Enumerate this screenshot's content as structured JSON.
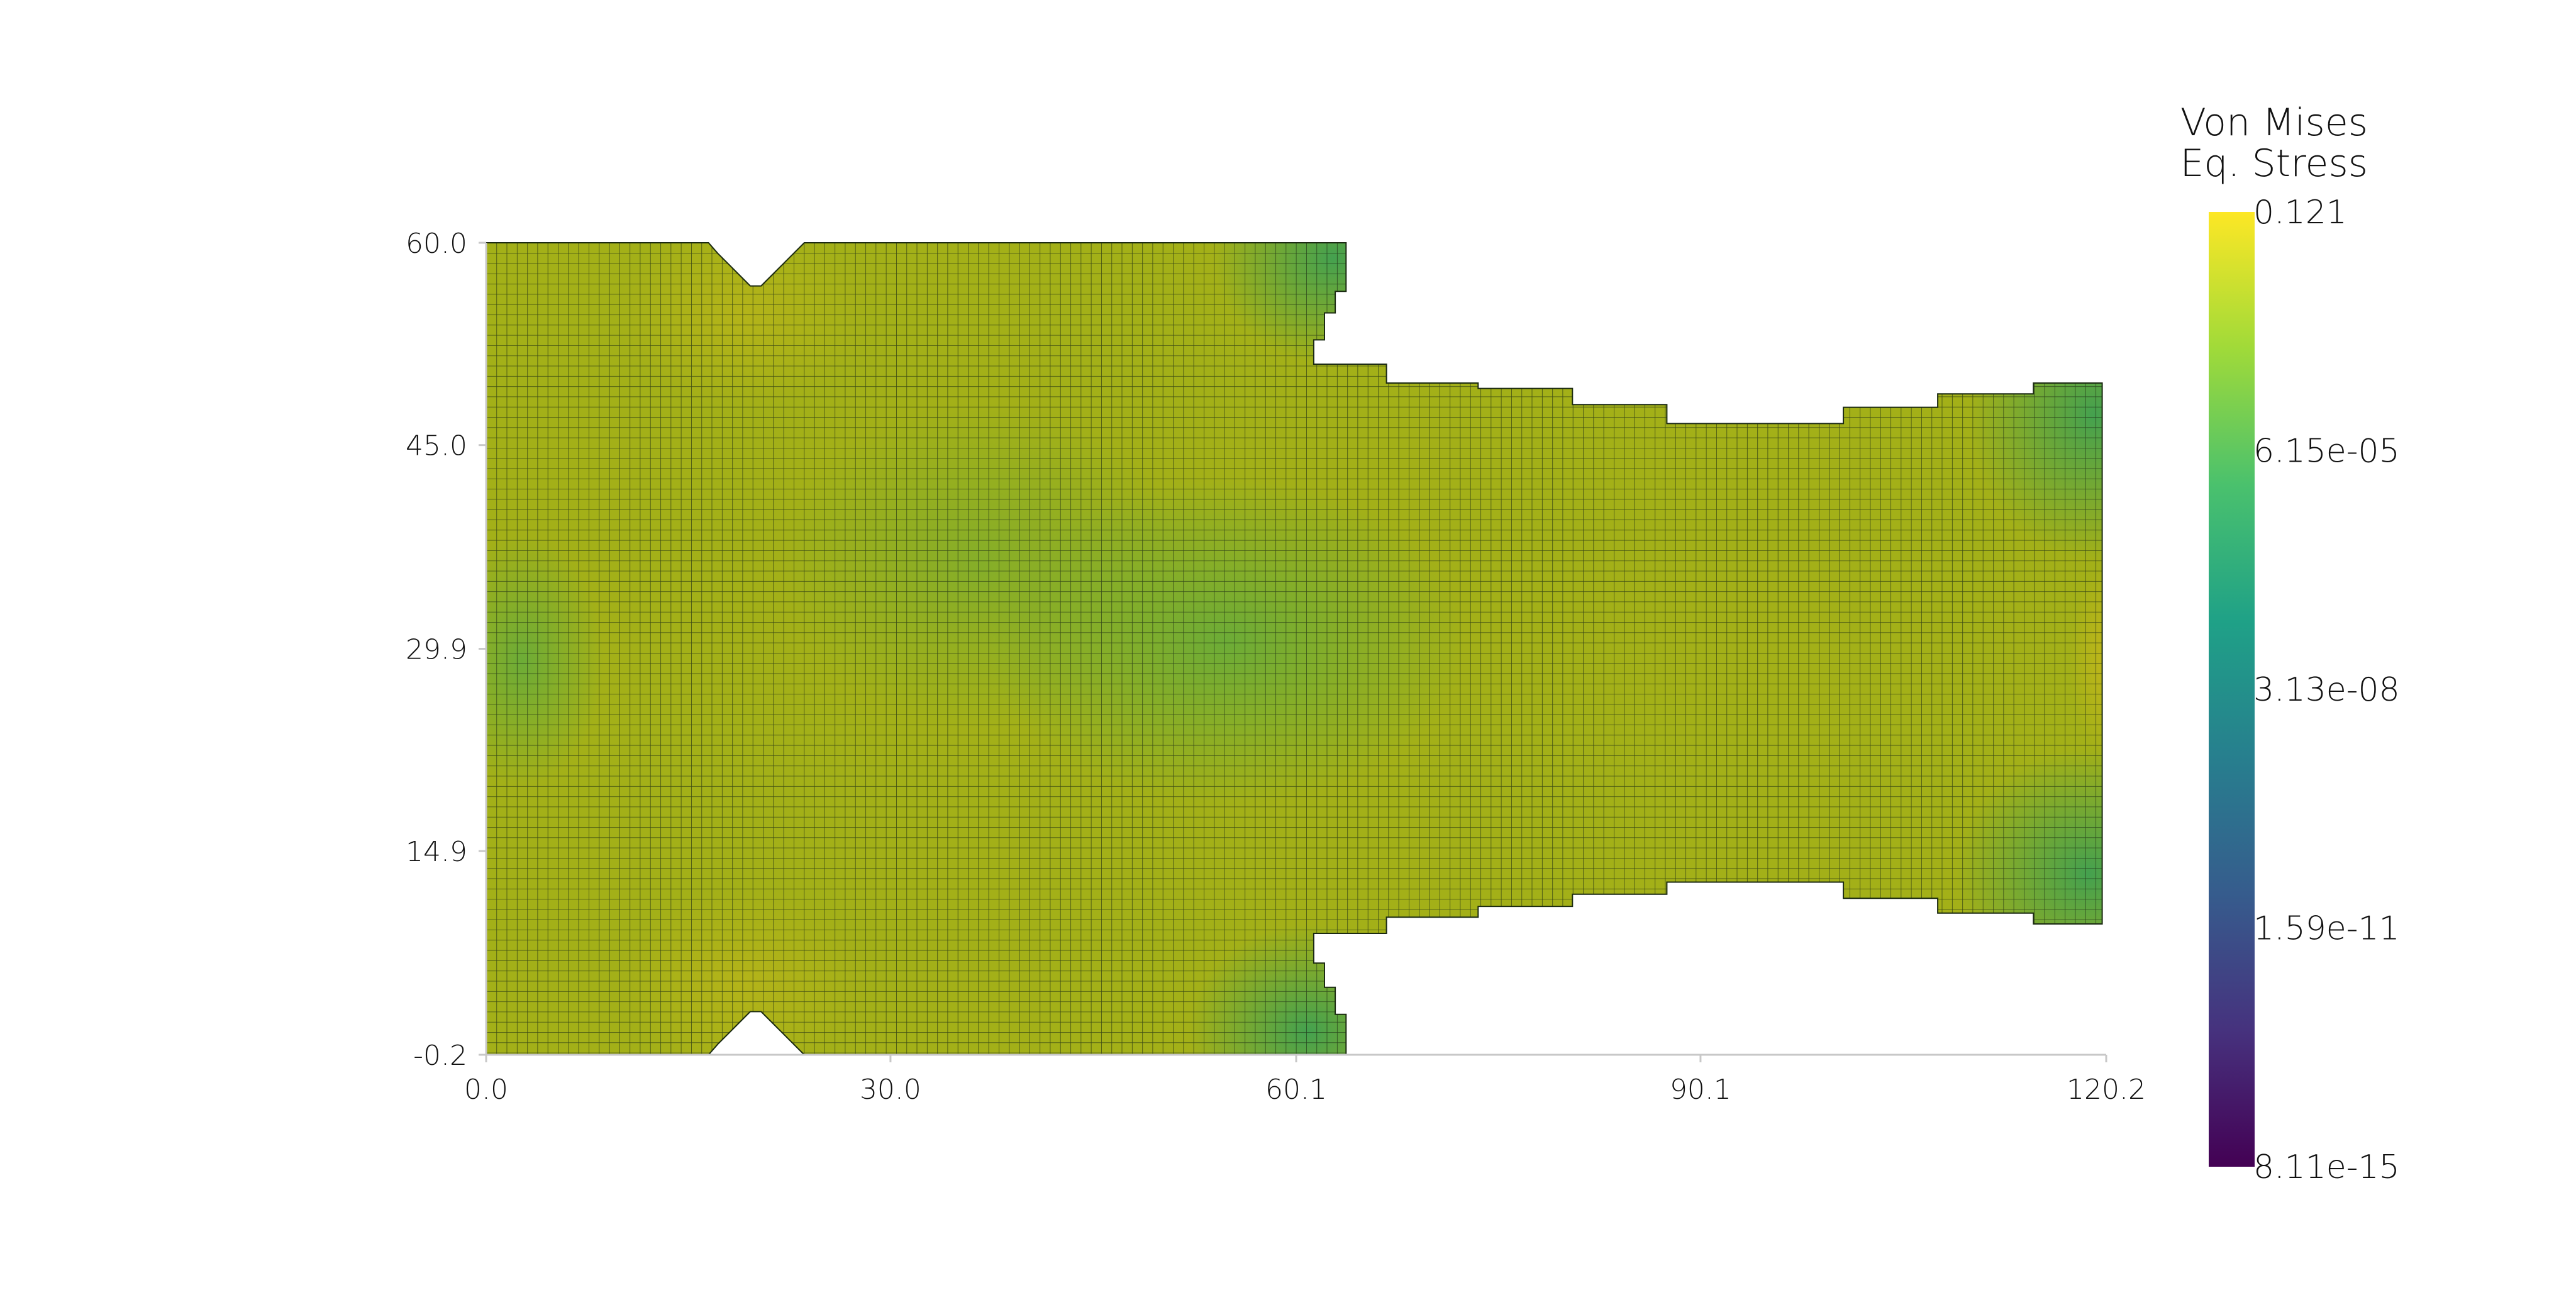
{
  "chart_data": {
    "type": "heatmap",
    "title": "",
    "xlabel": "",
    "ylabel": "",
    "xlim": [
      0.0,
      120.2
    ],
    "ylim": [
      -0.2,
      60.0
    ],
    "x_ticks": [
      "0.0",
      "30.0",
      "60.1",
      "90.1",
      "120.2"
    ],
    "y_ticks": [
      "-0.2",
      "14.9",
      "29.9",
      "45.0",
      "60.0"
    ],
    "mesh": "structured quadrilateral grid, cell size ~1.2 units",
    "outline_x": [
      0.0,
      16.5,
      17.2,
      18.0,
      18.8,
      19.6,
      20.4,
      21.2,
      22.0,
      22.8,
      23.6,
      63.8,
      63.8,
      63.0,
      63.0,
      62.2,
      62.2,
      61.4,
      61.4,
      66.8,
      66.8,
      73.6,
      73.6,
      80.6,
      80.6,
      87.6,
      87.6,
      100.7,
      100.7,
      107.7,
      107.7,
      114.8,
      114.8,
      119.9,
      119.9,
      114.8,
      114.8,
      107.7,
      107.7,
      100.7,
      100.7,
      87.6,
      87.6,
      80.6,
      80.6,
      73.6,
      73.6,
      66.8,
      66.8,
      61.4,
      61.4,
      62.2,
      62.2,
      63.0,
      63.0,
      63.8,
      63.8,
      23.6,
      22.8,
      22.0,
      21.2,
      20.4,
      19.6,
      18.8,
      18.0,
      17.2,
      16.5,
      0.0
    ],
    "outline_y": [
      60.0,
      60.0,
      59.2,
      58.4,
      57.6,
      56.8,
      56.8,
      57.6,
      58.4,
      59.2,
      60.0,
      60.0,
      56.4,
      56.4,
      54.8,
      54.8,
      52.8,
      52.8,
      51.0,
      51.0,
      49.6,
      49.6,
      49.2,
      49.2,
      48.0,
      48.0,
      46.6,
      46.6,
      47.8,
      47.8,
      48.8,
      48.8,
      49.6,
      49.6,
      9.5,
      9.5,
      10.3,
      10.3,
      11.4,
      11.4,
      12.6,
      12.6,
      11.7,
      11.7,
      10.8,
      10.8,
      10.0,
      10.0,
      8.8,
      8.8,
      6.6,
      6.6,
      4.8,
      4.8,
      2.8,
      2.8,
      -0.2,
      -0.2,
      0.6,
      1.4,
      2.2,
      3.0,
      3.0,
      2.2,
      1.4,
      0.6,
      -0.2,
      -0.2
    ],
    "colorbar": {
      "title_lines": [
        "Von Mises",
        "Eq. Stress"
      ],
      "labels": [
        "0.121",
        "6.15e-05",
        "3.13e-08",
        "1.59e-11",
        "8.11e-15"
      ],
      "scale": "log",
      "max": 0.121,
      "min": 8.11e-15,
      "colormap": "viridis",
      "colors": [
        "#fde725",
        "#a0da39",
        "#4ac16d",
        "#1fa187",
        "#277f8e",
        "#365c8d",
        "#46327e",
        "#440154"
      ]
    },
    "field_colors": {
      "base": "#a3b018",
      "green_zone": "#5fae49",
      "grid_line": "#1b2a12"
    }
  }
}
